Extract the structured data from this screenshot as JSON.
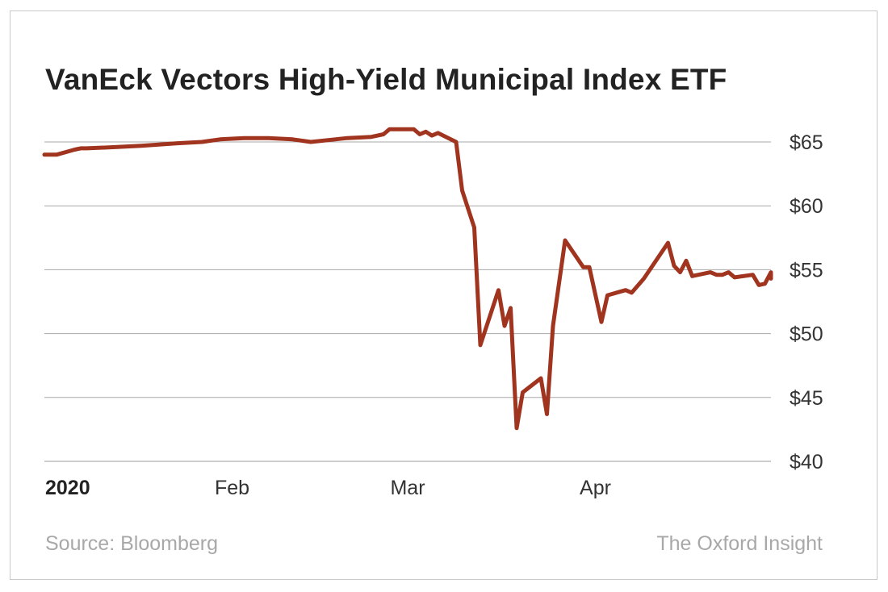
{
  "chart_data": {
    "type": "line",
    "title": "VanEck Vectors High-Yield Municipal Index ETF",
    "xlabel": "",
    "ylabel": "",
    "ylim": [
      40,
      66.5
    ],
    "y_ticks": [
      40,
      45,
      50,
      55,
      60,
      65
    ],
    "y_tick_labels": [
      "$40",
      "$45",
      "$50",
      "$55",
      "$60",
      "$65"
    ],
    "x_ticks": [
      {
        "date": "2020-01-01",
        "label": "2020",
        "bold": true
      },
      {
        "date": "2020-02-01",
        "label": "Feb",
        "bold": false
      },
      {
        "date": "2020-03-01",
        "label": "Mar",
        "bold": false
      },
      {
        "date": "2020-04-01",
        "label": "Apr",
        "bold": false
      }
    ],
    "x_range": [
      "2020-01-01",
      "2020-04-30"
    ],
    "grid": true,
    "line_color": "#a0341f",
    "series": [
      {
        "name": "",
        "points": [
          [
            "2020-01-01",
            64.0
          ],
          [
            "2020-01-02",
            64.0
          ],
          [
            "2020-01-03",
            64.0
          ],
          [
            "2020-01-06",
            64.4
          ],
          [
            "2020-01-07",
            64.5
          ],
          [
            "2020-01-08",
            64.5
          ],
          [
            "2020-01-13",
            64.6
          ],
          [
            "2020-01-17",
            64.7
          ],
          [
            "2020-01-23",
            64.9
          ],
          [
            "2020-01-27",
            65.0
          ],
          [
            "2020-01-30",
            65.2
          ],
          [
            "2020-02-03",
            65.3
          ],
          [
            "2020-02-07",
            65.3
          ],
          [
            "2020-02-11",
            65.2
          ],
          [
            "2020-02-14",
            65.0
          ],
          [
            "2020-02-18",
            65.2
          ],
          [
            "2020-02-20",
            65.3
          ],
          [
            "2020-02-24",
            65.4
          ],
          [
            "2020-02-26",
            65.6
          ],
          [
            "2020-02-27",
            66.0
          ],
          [
            "2020-02-28",
            66.0
          ],
          [
            "2020-03-02",
            66.0
          ],
          [
            "2020-03-03",
            65.6
          ],
          [
            "2020-03-04",
            65.8
          ],
          [
            "2020-03-05",
            65.5
          ],
          [
            "2020-03-06",
            65.7
          ],
          [
            "2020-03-09",
            65.0
          ],
          [
            "2020-03-10",
            61.2
          ],
          [
            "2020-03-12",
            58.3
          ],
          [
            "2020-03-13",
            49.1
          ],
          [
            "2020-03-16",
            53.4
          ],
          [
            "2020-03-17",
            50.6
          ],
          [
            "2020-03-18",
            52.0
          ],
          [
            "2020-03-19",
            42.6
          ],
          [
            "2020-03-20",
            45.4
          ],
          [
            "2020-03-23",
            46.5
          ],
          [
            "2020-03-24",
            43.7
          ],
          [
            "2020-03-25",
            50.6
          ],
          [
            "2020-03-27",
            57.3
          ],
          [
            "2020-03-30",
            55.2
          ],
          [
            "2020-03-31",
            55.2
          ],
          [
            "2020-04-02",
            50.9
          ],
          [
            "2020-04-03",
            53.0
          ],
          [
            "2020-04-06",
            53.4
          ],
          [
            "2020-04-07",
            53.2
          ],
          [
            "2020-04-09",
            54.3
          ],
          [
            "2020-04-13",
            57.1
          ],
          [
            "2020-04-14",
            55.3
          ],
          [
            "2020-04-15",
            54.8
          ],
          [
            "2020-04-16",
            55.7
          ],
          [
            "2020-04-17",
            54.5
          ],
          [
            "2020-04-20",
            54.8
          ],
          [
            "2020-04-21",
            54.6
          ],
          [
            "2020-04-22",
            54.6
          ],
          [
            "2020-04-23",
            54.8
          ],
          [
            "2020-04-24",
            54.4
          ],
          [
            "2020-04-27",
            54.6
          ],
          [
            "2020-04-28",
            53.8
          ],
          [
            "2020-04-29",
            53.9
          ],
          [
            "2020-04-30",
            54.8
          ],
          [
            "2020-05-01",
            54.3
          ]
        ]
      }
    ]
  },
  "footer": {
    "source": "Source: Bloomberg",
    "brand": "The Oxford Insight"
  }
}
